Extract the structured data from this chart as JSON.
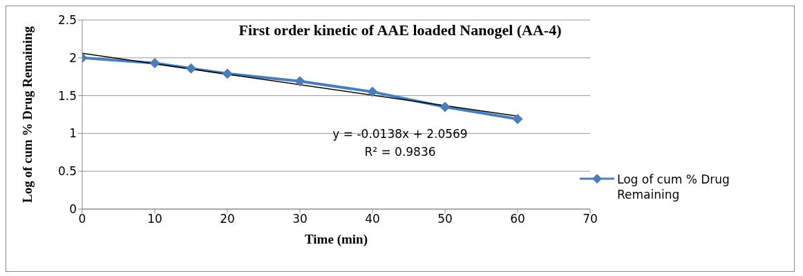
{
  "chart_data": {
    "type": "line",
    "title": "First order kinetic of AAE loaded Nanogel (AA-4)",
    "xlabel": "Time (min)",
    "ylabel": "Log of cum % Drug Remaining",
    "x": [
      0,
      10,
      15,
      20,
      30,
      40,
      50,
      60
    ],
    "series": [
      {
        "name": "Log of cum % Drug Remaining",
        "color": "#4a7ebb",
        "values": [
          2.0,
          1.93,
          1.86,
          1.79,
          1.69,
          1.55,
          1.35,
          1.19
        ],
        "marker": "diamond"
      },
      {
        "type": "line",
        "color": "#000000",
        "x": [
          0,
          60
        ],
        "values": [
          2.06,
          1.23
        ],
        "marker": "none"
      }
    ],
    "annotations": [
      "y = -0.0138x + 2.0569",
      "R² = 0.9836"
    ],
    "xlim": [
      0,
      70
    ],
    "xticks": [
      0,
      10,
      20,
      30,
      40,
      50,
      60,
      70
    ],
    "ylim": [
      0,
      2.5
    ],
    "yticks": [
      0,
      0.5,
      1,
      1.5,
      2,
      2.5
    ],
    "grid": "y",
    "legend": "bottom right",
    "line_style": "solid"
  }
}
